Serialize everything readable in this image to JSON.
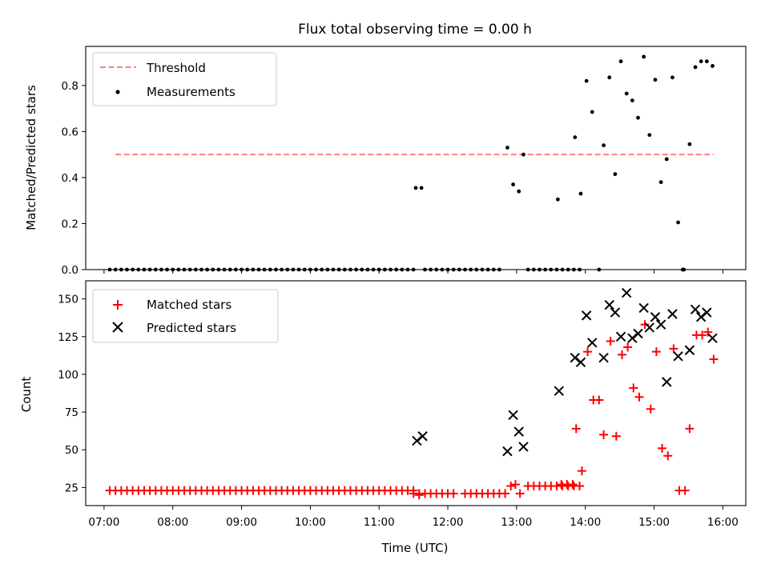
{
  "chart_data": [
    {
      "type": "scatter",
      "title": "Flux total observing time = 0.00 h",
      "xlabel": "",
      "ylabel": "Matched/Predicted stars",
      "ylim": [
        0,
        0.97
      ],
      "yticks": [
        "0.0",
        "0.2",
        "0.4",
        "0.6",
        "0.8"
      ],
      "legend_position": "top-left",
      "colors": {
        "threshold": "#ff7f7f",
        "measurements": "#000000"
      },
      "series": [
        {
          "name": "Threshold",
          "kind": "dashed-line",
          "x": [
            "07:10",
            "15:52"
          ],
          "y": [
            0.5,
            0.5
          ]
        },
        {
          "name": "Measurements",
          "kind": "points",
          "zero_run_x": [
            "07:05",
            "07:10",
            "07:15",
            "07:20",
            "07:25",
            "07:30",
            "07:35",
            "07:40",
            "07:45",
            "07:50",
            "07:55",
            "08:00",
            "08:05",
            "08:10",
            "08:15",
            "08:20",
            "08:25",
            "08:30",
            "08:35",
            "08:40",
            "08:45",
            "08:50",
            "08:55",
            "09:00",
            "09:05",
            "09:10",
            "09:15",
            "09:20",
            "09:25",
            "09:30",
            "09:35",
            "09:40",
            "09:45",
            "09:50",
            "09:55",
            "10:00",
            "10:05",
            "10:10",
            "10:15",
            "10:20",
            "10:25",
            "10:30",
            "10:35",
            "10:40",
            "10:45",
            "10:50",
            "10:55",
            "11:00",
            "11:05",
            "11:10",
            "11:15",
            "11:20",
            "11:25",
            "11:30",
            "11:40",
            "11:45",
            "11:50",
            "11:55",
            "12:00",
            "12:05",
            "12:10",
            "12:15",
            "12:20",
            "12:25",
            "12:30",
            "12:35",
            "12:40",
            "12:45",
            "13:10",
            "13:15",
            "13:20",
            "13:25",
            "13:30",
            "13:35",
            "13:40",
            "13:45",
            "13:50",
            "13:55",
            "14:12",
            "15:25"
          ],
          "points": [
            {
              "x": "11:32",
              "y": 0.355
            },
            {
              "x": "11:37",
              "y": 0.355
            },
            {
              "x": "12:52",
              "y": 0.53
            },
            {
              "x": "12:57",
              "y": 0.37
            },
            {
              "x": "13:02",
              "y": 0.34
            },
            {
              "x": "13:06",
              "y": 0.5
            },
            {
              "x": "13:36",
              "y": 0.305
            },
            {
              "x": "13:51",
              "y": 0.575
            },
            {
              "x": "13:56",
              "y": 0.33
            },
            {
              "x": "14:01",
              "y": 0.82
            },
            {
              "x": "14:06",
              "y": 0.685
            },
            {
              "x": "14:16",
              "y": 0.54
            },
            {
              "x": "14:21",
              "y": 0.835
            },
            {
              "x": "14:26",
              "y": 0.415
            },
            {
              "x": "14:31",
              "y": 0.905
            },
            {
              "x": "14:36",
              "y": 0.765
            },
            {
              "x": "14:41",
              "y": 0.735
            },
            {
              "x": "14:46",
              "y": 0.66
            },
            {
              "x": "14:51",
              "y": 0.925
            },
            {
              "x": "14:56",
              "y": 0.585
            },
            {
              "x": "15:01",
              "y": 0.825
            },
            {
              "x": "15:06",
              "y": 0.38
            },
            {
              "x": "15:11",
              "y": 0.48
            },
            {
              "x": "15:16",
              "y": 0.835
            },
            {
              "x": "15:21",
              "y": 0.205
            },
            {
              "x": "15:26",
              "y": 0.0
            },
            {
              "x": "15:31",
              "y": 0.545
            },
            {
              "x": "15:36",
              "y": 0.88
            },
            {
              "x": "15:41",
              "y": 0.905
            },
            {
              "x": "15:46",
              "y": 0.905
            },
            {
              "x": "15:51",
              "y": 0.885
            }
          ]
        }
      ]
    },
    {
      "type": "scatter",
      "xlabel": "Time (UTC)",
      "ylabel": "Count",
      "ylim": [
        13,
        162
      ],
      "xlim": [
        "06:44",
        "16:20"
      ],
      "xticks": [
        "07:00",
        "08:00",
        "09:00",
        "10:00",
        "11:00",
        "12:00",
        "13:00",
        "14:00",
        "15:00",
        "16:00"
      ],
      "yticks": [
        "25",
        "50",
        "75",
        "100",
        "125",
        "150"
      ],
      "legend_position": "top-left",
      "colors": {
        "matched": "#ff0000",
        "predicted": "#000000"
      },
      "series": [
        {
          "name": "Matched stars",
          "marker": "plus",
          "flat_runs": [
            {
              "from": "07:05",
              "to": "11:30",
              "step_min": 5,
              "y": 23
            },
            {
              "from": "11:30",
              "to": "12:05",
              "step_min": 5,
              "y": 21
            },
            {
              "from": "12:15",
              "to": "12:50",
              "step_min": 5,
              "y": 21
            },
            {
              "from": "13:10",
              "to": "13:55",
              "step_min": 5,
              "y": 26
            }
          ],
          "points": [
            {
              "x": "11:35",
              "y": 20
            },
            {
              "x": "12:55",
              "y": 26
            },
            {
              "x": "12:59",
              "y": 27
            },
            {
              "x": "13:03",
              "y": 21
            },
            {
              "x": "13:39",
              "y": 27
            },
            {
              "x": "13:44",
              "y": 27
            },
            {
              "x": "13:49",
              "y": 27
            },
            {
              "x": "13:52",
              "y": 64
            },
            {
              "x": "13:57",
              "y": 36
            },
            {
              "x": "14:02",
              "y": 115
            },
            {
              "x": "14:07",
              "y": 83
            },
            {
              "x": "14:12",
              "y": 83
            },
            {
              "x": "14:16",
              "y": 60
            },
            {
              "x": "14:22",
              "y": 122
            },
            {
              "x": "14:27",
              "y": 59
            },
            {
              "x": "14:32",
              "y": 113
            },
            {
              "x": "14:37",
              "y": 118
            },
            {
              "x": "14:42",
              "y": 91
            },
            {
              "x": "14:47",
              "y": 85
            },
            {
              "x": "14:52",
              "y": 133
            },
            {
              "x": "14:57",
              "y": 77
            },
            {
              "x": "15:02",
              "y": 115
            },
            {
              "x": "15:07",
              "y": 51
            },
            {
              "x": "15:12",
              "y": 46
            },
            {
              "x": "15:17",
              "y": 117
            },
            {
              "x": "15:22",
              "y": 23
            },
            {
              "x": "15:27",
              "y": 23
            },
            {
              "x": "15:31",
              "y": 64
            },
            {
              "x": "15:37",
              "y": 126
            },
            {
              "x": "15:42",
              "y": 126
            },
            {
              "x": "15:47",
              "y": 128
            },
            {
              "x": "15:52",
              "y": 110
            }
          ]
        },
        {
          "name": "Predicted stars",
          "marker": "x",
          "points": [
            {
              "x": "11:33",
              "y": 56
            },
            {
              "x": "11:38",
              "y": 59
            },
            {
              "x": "12:52",
              "y": 49
            },
            {
              "x": "12:57",
              "y": 73
            },
            {
              "x": "13:02",
              "y": 62
            },
            {
              "x": "13:06",
              "y": 52
            },
            {
              "x": "13:37",
              "y": 89
            },
            {
              "x": "13:51",
              "y": 111
            },
            {
              "x": "13:56",
              "y": 108
            },
            {
              "x": "14:01",
              "y": 139
            },
            {
              "x": "14:06",
              "y": 121
            },
            {
              "x": "14:16",
              "y": 111
            },
            {
              "x": "14:21",
              "y": 146
            },
            {
              "x": "14:26",
              "y": 141
            },
            {
              "x": "14:31",
              "y": 125
            },
            {
              "x": "14:36",
              "y": 154
            },
            {
              "x": "14:41",
              "y": 124
            },
            {
              "x": "14:46",
              "y": 127
            },
            {
              "x": "14:51",
              "y": 144
            },
            {
              "x": "14:56",
              "y": 131
            },
            {
              "x": "15:01",
              "y": 138
            },
            {
              "x": "15:06",
              "y": 133
            },
            {
              "x": "15:11",
              "y": 95
            },
            {
              "x": "15:16",
              "y": 140
            },
            {
              "x": "15:21",
              "y": 112
            },
            {
              "x": "15:31",
              "y": 116
            },
            {
              "x": "15:36",
              "y": 143
            },
            {
              "x": "15:41",
              "y": 138
            },
            {
              "x": "15:46",
              "y": 141
            },
            {
              "x": "15:51",
              "y": 124
            }
          ]
        }
      ]
    }
  ]
}
